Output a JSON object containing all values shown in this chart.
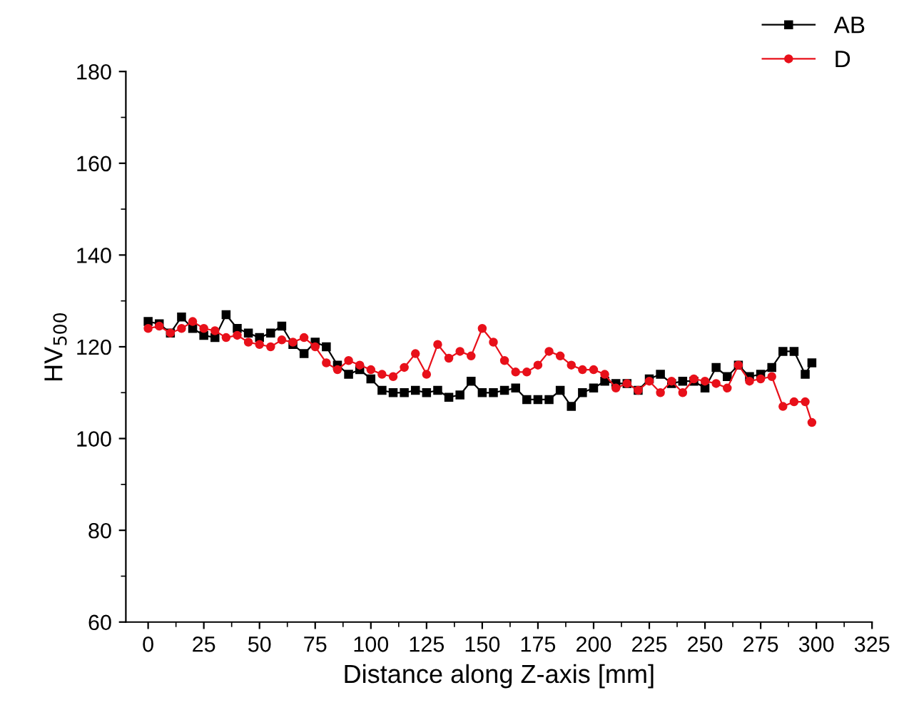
{
  "chart_data": {
    "type": "line",
    "xlabel": "Distance along Z-axis [mm]",
    "ylabel": "HV$_{500}$",
    "xlim": [
      -10,
      325
    ],
    "ylim": [
      60,
      180
    ],
    "xticks": [
      0,
      25,
      50,
      75,
      100,
      125,
      150,
      175,
      200,
      225,
      250,
      275,
      300,
      325
    ],
    "yticks": [
      60,
      80,
      100,
      120,
      140,
      160,
      180
    ],
    "legend": "top right",
    "grid": false,
    "series": [
      {
        "name": "AB",
        "color": "#000000",
        "marker": "square",
        "x": [
          0,
          5,
          10,
          15,
          20,
          25,
          30,
          35,
          40,
          45,
          50,
          55,
          60,
          65,
          70,
          75,
          80,
          85,
          90,
          95,
          100,
          105,
          110,
          115,
          120,
          125,
          130,
          135,
          140,
          145,
          150,
          155,
          160,
          165,
          170,
          175,
          180,
          185,
          190,
          195,
          200,
          205,
          210,
          215,
          220,
          225,
          230,
          235,
          240,
          245,
          250,
          255,
          260,
          265,
          270,
          275,
          280,
          285,
          290,
          295,
          298
        ],
        "values": [
          125.5,
          125,
          123,
          126.5,
          124,
          122.5,
          122,
          127,
          124,
          123,
          122,
          123,
          124.5,
          120.5,
          118.5,
          121,
          120,
          116,
          114,
          115,
          113,
          110.5,
          110,
          110,
          110.5,
          110,
          110.5,
          109,
          109.5,
          112.5,
          110,
          110,
          110.5,
          111,
          108.5,
          108.5,
          108.5,
          110.5,
          107,
          110,
          111,
          112.5,
          112,
          112,
          110.5,
          113,
          114,
          112,
          112.5,
          112.5,
          111,
          115.5,
          113.5,
          116,
          113.5,
          114,
          115.5,
          119,
          119,
          114,
          116.5
        ]
      },
      {
        "name": "D",
        "color": "#e8101a",
        "marker": "circle",
        "x": [
          0,
          5,
          10,
          15,
          20,
          25,
          30,
          35,
          40,
          45,
          50,
          55,
          60,
          65,
          70,
          75,
          80,
          85,
          90,
          95,
          100,
          105,
          110,
          115,
          120,
          125,
          130,
          135,
          140,
          145,
          150,
          155,
          160,
          165,
          170,
          175,
          180,
          185,
          190,
          195,
          200,
          205,
          210,
          215,
          220,
          225,
          230,
          235,
          240,
          245,
          250,
          255,
          260,
          265,
          270,
          275,
          280,
          285,
          290,
          295,
          298
        ],
        "values": [
          124,
          124.5,
          123,
          124,
          125.5,
          124,
          123.5,
          122,
          122.5,
          121,
          120.5,
          120,
          121.5,
          121,
          122,
          120,
          116.5,
          115,
          117,
          116,
          115,
          114,
          113.5,
          115.5,
          118.5,
          114,
          120.5,
          117.5,
          119,
          118,
          124,
          121,
          117,
          114.5,
          114.5,
          116,
          119,
          118,
          116,
          115,
          115,
          114,
          111,
          112,
          110.5,
          112.5,
          110,
          112.5,
          110,
          113,
          112.5,
          112,
          111,
          116,
          112.5,
          113,
          113.5,
          107,
          108,
          108,
          103.5
        ]
      }
    ]
  }
}
